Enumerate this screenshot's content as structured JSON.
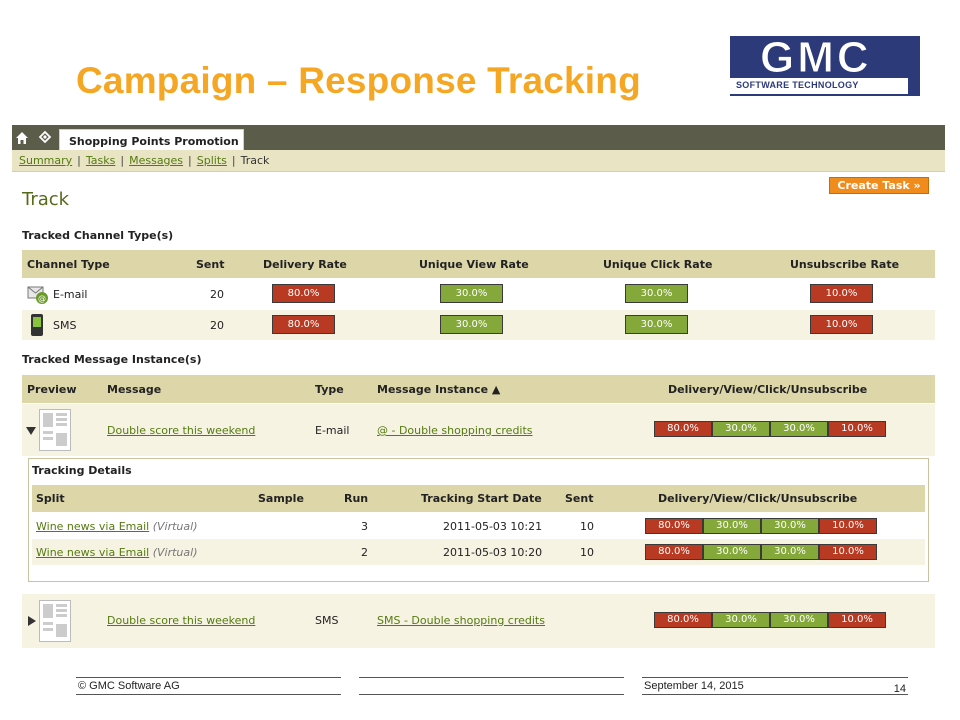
{
  "slide": {
    "title": "Campaign – Response Tracking",
    "logo_main": "GMC",
    "logo_sub": "SOFTWARE TECHNOLOGY"
  },
  "app": {
    "tab_label": "Shopping Points Promotion",
    "subnav": [
      "Summary",
      "Tasks",
      "Messages",
      "Splits"
    ],
    "subnav_current": "Track",
    "create_task_label": "Create Task »",
    "page_title": "Track"
  },
  "channels": {
    "heading": "Tracked Channel Type(s)",
    "columns": [
      "Channel Type",
      "Sent",
      "Delivery Rate",
      "Unique View Rate",
      "Unique Click Rate",
      "Unsubscribe Rate"
    ],
    "rows": [
      {
        "icon": "email-icon",
        "type": "E-mail",
        "sent": "20",
        "delivery": "80.0%",
        "view": "30.0%",
        "click": "30.0%",
        "unsub": "10.0%"
      },
      {
        "icon": "sms-phone-icon",
        "type": "SMS",
        "sent": "20",
        "delivery": "80.0%",
        "view": "30.0%",
        "click": "30.0%",
        "unsub": "10.0%"
      }
    ]
  },
  "messages": {
    "heading": "Tracked Message Instance(s)",
    "columns": [
      "Preview",
      "Message",
      "Type",
      "Message Instance ▲",
      "Delivery/View/Click/Unsubscribe"
    ],
    "rows": [
      {
        "message": "Double score this weekend",
        "type": "E-mail",
        "instance": "@ - Double shopping credits",
        "rates": [
          "80.0%",
          "30.0%",
          "30.0%",
          "10.0%"
        ]
      },
      {
        "message": "Double score this weekend",
        "type": "SMS",
        "instance": "SMS - Double shopping credits",
        "rates": [
          "80.0%",
          "30.0%",
          "30.0%",
          "10.0%"
        ]
      }
    ]
  },
  "tracking_details": {
    "heading": "Tracking Details",
    "columns": [
      "Split",
      "Sample",
      "Run",
      "Tracking Start Date",
      "Sent",
      "Delivery/View/Click/Unsubscribe"
    ],
    "rows": [
      {
        "split": "Wine news via Email",
        "virtual": "(Virtual)",
        "sample": "",
        "run": "3",
        "date": "2011-05-03 10:21",
        "sent": "10",
        "rates": [
          "80.0%",
          "30.0%",
          "30.0%",
          "10.0%"
        ]
      },
      {
        "split": "Wine news via Email",
        "virtual": "(Virtual)",
        "sample": "",
        "run": "2",
        "date": "2011-05-03 10:20",
        "sent": "10",
        "rates": [
          "80.0%",
          "30.0%",
          "30.0%",
          "10.0%"
        ]
      }
    ]
  },
  "footer": {
    "copyright": "© GMC Software AG",
    "date": "September 14, 2015",
    "page": "14"
  },
  "colors": {
    "accent_title": "#f5a623",
    "rate_bad": "#b83a22",
    "rate_good": "#85a83b",
    "logo": "#2d3a7a"
  }
}
